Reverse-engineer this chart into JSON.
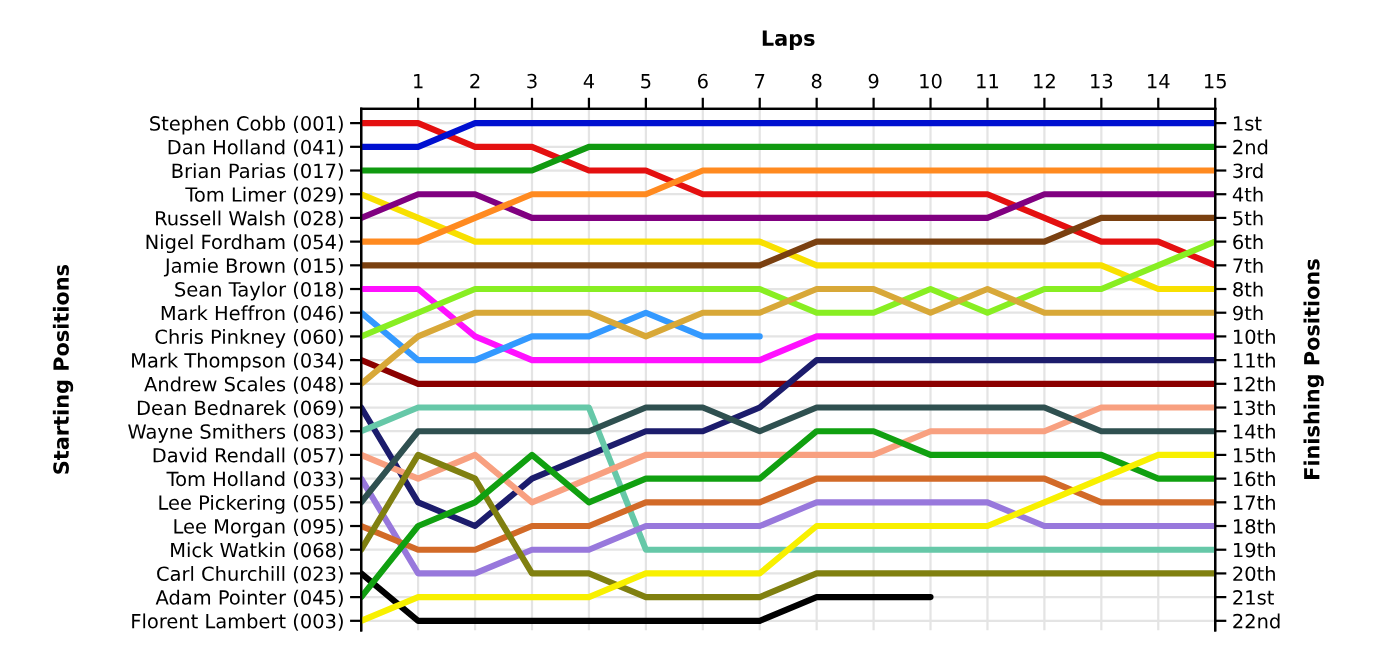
{
  "chart_data": {
    "type": "line",
    "xlabel": "Laps",
    "ylabel": "Finishing Positions",
    "annotations": [
      "Starting Positions"
    ],
    "x": [
      0,
      1,
      2,
      3,
      4,
      5,
      6,
      7,
      8,
      9,
      10,
      11,
      12,
      13,
      14,
      15
    ],
    "xlim": [
      0,
      15
    ],
    "xticks": [
      1,
      2,
      3,
      4,
      5,
      6,
      7,
      8,
      9,
      10,
      11,
      12,
      13,
      14,
      15
    ],
    "ylim": [
      22.4,
      0.4
    ],
    "yticks": [
      {
        "value": 1,
        "label": "1st"
      },
      {
        "value": 2,
        "label": "2nd"
      },
      {
        "value": 3,
        "label": "3rd"
      },
      {
        "value": 4,
        "label": "4th"
      },
      {
        "value": 5,
        "label": "5th"
      },
      {
        "value": 6,
        "label": "6th"
      },
      {
        "value": 7,
        "label": "7th"
      },
      {
        "value": 8,
        "label": "8th"
      },
      {
        "value": 9,
        "label": "9th"
      },
      {
        "value": 10,
        "label": "10th"
      },
      {
        "value": 11,
        "label": "11th"
      },
      {
        "value": 12,
        "label": "12th"
      },
      {
        "value": 13,
        "label": "13th"
      },
      {
        "value": 14,
        "label": "14th"
      },
      {
        "value": 15,
        "label": "15th"
      },
      {
        "value": 16,
        "label": "16th"
      },
      {
        "value": 17,
        "label": "17th"
      },
      {
        "value": 18,
        "label": "18th"
      },
      {
        "value": 19,
        "label": "19th"
      },
      {
        "value": 20,
        "label": "20th"
      },
      {
        "value": 21,
        "label": "21st"
      },
      {
        "value": 22,
        "label": "22nd"
      }
    ],
    "y2_categories": [
      "Stephen Cobb (001)",
      "Dan Holland (041)",
      "Brian Parias (017)",
      "Tom Limer (029)",
      "Russell Walsh (028)",
      "Nigel Fordham (054)",
      "Jamie Brown (015)",
      "Sean Taylor (018)",
      "Mark Heffron (046)",
      "Chris Pinkney (060)",
      "Mark Thompson (034)",
      "Andrew Scales (048)",
      "Dean Bednarek (069)",
      "Wayne Smithers (083)",
      "David Rendall (057)",
      "Tom Holland (033)",
      "Lee Pickering (055)",
      "Lee Morgan (095)",
      "Mick Watkin (068)",
      "Carl Churchill (023)",
      "Adam Pointer (045)",
      "Florent Lambert (003)"
    ],
    "grid": true,
    "marker": "none",
    "line_style": "solid",
    "series": [
      {
        "color": "#e41010",
        "values": [
          1,
          1,
          2,
          2,
          3,
          3,
          4,
          4,
          4,
          4,
          4,
          4,
          5,
          6,
          6,
          7
        ]
      },
      {
        "color": "#0010d0",
        "values": [
          2,
          2,
          1,
          1,
          1,
          1,
          1,
          1,
          1,
          1,
          1,
          1,
          1,
          1,
          1,
          1
        ]
      },
      {
        "color": "#109a10",
        "values": [
          3,
          3,
          3,
          3,
          2,
          2,
          2,
          2,
          2,
          2,
          2,
          2,
          2,
          2,
          2,
          2
        ]
      },
      {
        "color": "#f8e000",
        "values": [
          4,
          5,
          6,
          6,
          6,
          6,
          6,
          6,
          7,
          7,
          7,
          7,
          7,
          7,
          8,
          8
        ]
      },
      {
        "color": "#800080",
        "values": [
          5,
          4,
          4,
          5,
          5,
          5,
          5,
          5,
          5,
          5,
          5,
          5,
          4,
          4,
          4,
          4
        ]
      },
      {
        "color": "#ff8a20",
        "values": [
          6,
          6,
          5,
          4,
          4,
          4,
          3,
          3,
          3,
          3,
          3,
          3,
          3,
          3,
          3,
          3
        ]
      },
      {
        "color": "#7a4010",
        "values": [
          7,
          7,
          7,
          7,
          7,
          7,
          7,
          7,
          6,
          6,
          6,
          6,
          6,
          5,
          5,
          5
        ]
      },
      {
        "color": "#ff10ff",
        "values": [
          8,
          8,
          10,
          11,
          11,
          11,
          11,
          11,
          10,
          10,
          10,
          10,
          10,
          10,
          10,
          10
        ]
      },
      {
        "color": "#3399ff",
        "values": [
          9,
          11,
          11,
          10,
          10,
          9,
          10,
          10,
          null,
          null,
          null,
          null,
          null,
          null,
          null,
          null
        ]
      },
      {
        "color": "#88ee22",
        "values": [
          10,
          9,
          8,
          8,
          8,
          8,
          8,
          8,
          9,
          9,
          8,
          9,
          8,
          8,
          7,
          6
        ]
      },
      {
        "color": "#8b0000",
        "values": [
          11,
          12,
          12,
          12,
          12,
          12,
          12,
          12,
          12,
          12,
          12,
          12,
          12,
          12,
          12,
          12
        ]
      },
      {
        "color": "#d8a838",
        "values": [
          12,
          10,
          9,
          9,
          9,
          10,
          9,
          9,
          8,
          8,
          9,
          8,
          9,
          9,
          9,
          9
        ]
      },
      {
        "color": "#1c1c6c",
        "values": [
          13,
          17,
          18,
          16,
          15,
          14,
          14,
          13,
          11,
          11,
          11,
          11,
          11,
          11,
          11,
          11
        ]
      },
      {
        "color": "#66c8a8",
        "values": [
          14,
          13,
          13,
          13,
          13,
          19,
          19,
          19,
          19,
          19,
          19,
          19,
          19,
          19,
          19,
          19
        ]
      },
      {
        "color": "#f8a080",
        "values": [
          15,
          16,
          15,
          17,
          16,
          15,
          15,
          15,
          15,
          15,
          14,
          14,
          14,
          13,
          13,
          13
        ]
      },
      {
        "color": "#9878dc",
        "values": [
          16,
          20,
          20,
          19,
          19,
          18,
          18,
          18,
          17,
          17,
          17,
          17,
          18,
          18,
          18,
          18
        ]
      },
      {
        "color": "#2f5050",
        "values": [
          17,
          14,
          14,
          14,
          14,
          13,
          13,
          14,
          13,
          13,
          13,
          13,
          13,
          14,
          14,
          14
        ]
      },
      {
        "color": "#d26a28",
        "values": [
          18,
          19,
          19,
          18,
          18,
          17,
          17,
          17,
          16,
          16,
          16,
          16,
          16,
          17,
          17,
          17
        ]
      },
      {
        "color": "#808010",
        "values": [
          19,
          15,
          16,
          20,
          20,
          21,
          21,
          21,
          20,
          20,
          20,
          20,
          20,
          20,
          20,
          20
        ]
      },
      {
        "color": "#000000",
        "values": [
          20,
          22,
          22,
          22,
          22,
          22,
          22,
          22,
          21,
          21,
          21,
          null,
          null,
          null,
          null,
          null
        ]
      },
      {
        "color": "#10a010",
        "values": [
          21,
          18,
          17,
          15,
          17,
          16,
          16,
          16,
          14,
          14,
          15,
          15,
          15,
          15,
          16,
          16
        ]
      },
      {
        "color": "#f8f000",
        "values": [
          22,
          21,
          21,
          21,
          21,
          20,
          20,
          20,
          18,
          18,
          18,
          18,
          17,
          16,
          15,
          15
        ]
      }
    ]
  }
}
